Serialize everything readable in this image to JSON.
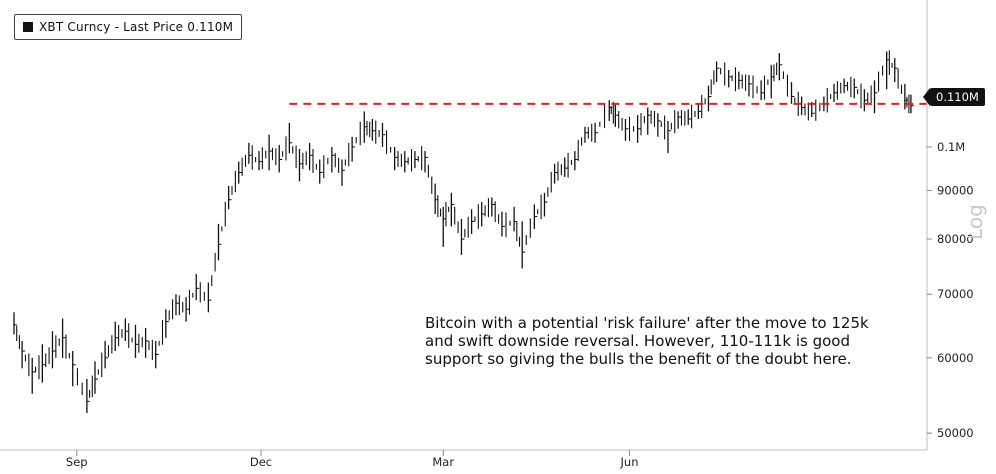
{
  "legend": {
    "label": "XBT Curncy - Last Price 0.110M"
  },
  "annotation": "Bitcoin with a potential 'risk failure' after the move to 125k and swift downside reversal. However, 110-111k is good support so giving the bulls the benefit of the doubt here.",
  "last_price_tag": "0.110M",
  "scale_label": "Log",
  "colors": {
    "bars": "#111111",
    "support_line": "#e02020",
    "axis": "#888888"
  },
  "chart_data": {
    "type": "line",
    "title": "",
    "xlabel": "",
    "ylabel": "",
    "y_scale": "log",
    "ylim": [
      48000,
      140000
    ],
    "y_ticks": [
      {
        "value": 50000,
        "label": "50000"
      },
      {
        "value": 60000,
        "label": "60000"
      },
      {
        "value": 70000,
        "label": "70000"
      },
      {
        "value": 80000,
        "label": "80000"
      },
      {
        "value": 90000,
        "label": "90000"
      },
      {
        "value": 100000,
        "label": "0.1M"
      }
    ],
    "x_ticks": [
      {
        "date": "2024-09-01",
        "label": "Sep"
      },
      {
        "date": "2024-12-01",
        "label": "Dec"
      },
      {
        "date": "2025-03-01",
        "label": "Mar"
      },
      {
        "date": "2025-06-01",
        "label": "Jun"
      }
    ],
    "xlim": [
      "2024-08-01",
      "2025-10-20"
    ],
    "support_level": 111000,
    "series": [
      {
        "x": [
          "2024-08-01",
          "2024-08-05",
          "2024-08-10",
          "2024-08-15",
          "2024-08-20",
          "2024-08-25",
          "2024-08-30",
          "2024-09-06",
          "2024-09-10",
          "2024-09-15",
          "2024-09-20",
          "2024-09-25",
          "2024-09-30",
          "2024-10-05",
          "2024-10-10",
          "2024-10-15",
          "2024-10-20",
          "2024-10-25",
          "2024-10-30",
          "2024-11-05",
          "2024-11-10",
          "2024-11-15",
          "2024-11-20",
          "2024-11-25",
          "2024-11-30",
          "2024-12-05",
          "2024-12-10",
          "2024-12-15",
          "2024-12-20",
          "2024-12-25",
          "2024-12-30",
          "2025-01-05",
          "2025-01-10",
          "2025-01-15",
          "2025-01-21",
          "2025-01-25",
          "2025-01-30",
          "2025-02-05",
          "2025-02-10",
          "2025-02-15",
          "2025-02-20",
          "2025-02-25",
          "2025-03-01",
          "2025-03-05",
          "2025-03-10",
          "2025-03-15",
          "2025-03-20",
          "2025-03-25",
          "2025-03-30",
          "2025-04-05",
          "2025-04-09",
          "2025-04-15",
          "2025-04-20",
          "2025-04-25",
          "2025-04-30",
          "2025-05-05",
          "2025-05-10",
          "2025-05-15",
          "2025-05-22",
          "2025-05-25",
          "2025-05-30",
          "2025-06-05",
          "2025-06-10",
          "2025-06-15",
          "2025-06-20",
          "2025-06-25",
          "2025-06-30",
          "2025-07-05",
          "2025-07-10",
          "2025-07-14",
          "2025-07-20",
          "2025-07-25",
          "2025-07-30",
          "2025-08-05",
          "2025-08-10",
          "2025-08-14",
          "2025-08-20",
          "2025-08-25",
          "2025-08-30",
          "2025-09-05",
          "2025-09-10",
          "2025-09-15",
          "2025-09-20",
          "2025-09-25",
          "2025-09-30",
          "2025-10-06",
          "2025-10-10",
          "2025-10-15",
          "2025-10-18"
        ],
        "y": [
          65000,
          61000,
          58000,
          59000,
          61000,
          63000,
          59000,
          54000,
          57000,
          60000,
          63000,
          64000,
          62000,
          62500,
          60500,
          65500,
          68500,
          67500,
          71000,
          69000,
          79000,
          88000,
          94000,
          98000,
          96500,
          99000,
          97000,
          101000,
          96000,
          98000,
          94000,
          98000,
          94500,
          100000,
          105000,
          104000,
          103000,
          97500,
          96500,
          97000,
          97500,
          88000,
          84000,
          87000,
          80000,
          83500,
          85000,
          87000,
          82500,
          83500,
          77500,
          84500,
          87500,
          94000,
          95000,
          97000,
          103500,
          103500,
          110000,
          108000,
          104500,
          104500,
          108000,
          106500,
          104000,
          107500,
          107000,
          109000,
          113000,
          121000,
          118500,
          117500,
          116500,
          114000,
          118500,
          122000,
          113000,
          110000,
          108500,
          111000,
          114000,
          116000,
          115500,
          112000,
          114000,
          123500,
          121000,
          112000,
          110500
        ],
        "high": [
          67000,
          62500,
          60000,
          62000,
          64000,
          66000,
          61000,
          57000,
          59500,
          62500,
          65500,
          66000,
          65000,
          64500,
          62500,
          67500,
          70000,
          69500,
          73500,
          72000,
          83000,
          91000,
          96500,
          101000,
          99000,
          103000,
          100500,
          106000,
          99500,
          101000,
          97000,
          100000,
          97000,
          102500,
          109000,
          107000,
          106000,
          100000,
          99000,
          99000,
          99000,
          91500,
          86500,
          89500,
          84000,
          86000,
          87500,
          88500,
          85500,
          86500,
          83500,
          87000,
          89500,
          96000,
          97500,
          99000,
          105000,
          106000,
          112000,
          111000,
          107000,
          108000,
          110000,
          108500,
          106500,
          109000,
          109500,
          111000,
          116000,
          123000,
          120500,
          120000,
          119000,
          117500,
          122000,
          125500,
          117000,
          113000,
          111500,
          113000,
          116500,
          118000,
          118000,
          115000,
          117500,
          126000,
          124000,
          116500,
          113500
        ],
        "low": [
          63500,
          58500,
          55000,
          56500,
          58500,
          60000,
          56000,
          52500,
          55000,
          58500,
          61000,
          62500,
          60000,
          60000,
          58500,
          63000,
          66500,
          65500,
          69000,
          67000,
          76000,
          86000,
          91500,
          96000,
          94500,
          94500,
          94000,
          98500,
          92000,
          94500,
          91500,
          94000,
          91000,
          96500,
          101000,
          101500,
          100000,
          94500,
          94000,
          95000,
          94000,
          85000,
          78500,
          82500,
          77000,
          81000,
          82500,
          84500,
          80500,
          81500,
          74500,
          82000,
          84500,
          91500,
          93000,
          94500,
          101000,
          101000,
          106500,
          105000,
          101500,
          101000,
          103000,
          102500,
          98500,
          104500,
          105500,
          107000,
          109000,
          117000,
          115500,
          115000,
          113000,
          112000,
          112500,
          117500,
          111000,
          108000,
          107500,
          109000,
          111500,
          114000,
          112500,
          109000,
          108500,
          115000,
          117000,
          109500,
          108500
        ]
      }
    ]
  }
}
